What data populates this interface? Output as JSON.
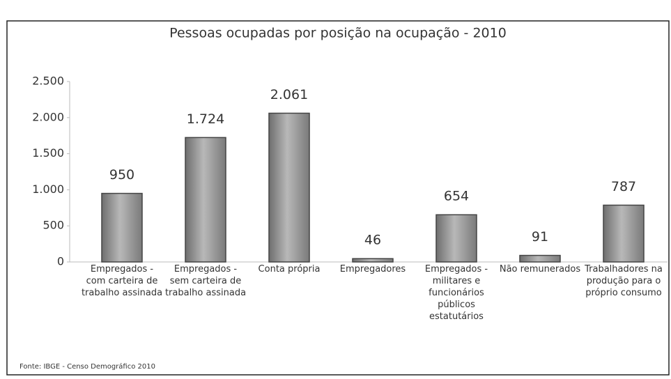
{
  "chart_data": {
    "type": "bar",
    "title": "Pessoas ocupadas por posição na ocupação - 2010",
    "categories": [
      "Empregados - com carteira de trabalho assinada",
      "Empregados - sem carteira de trabalho assinada",
      "Conta própria",
      "Empregadores",
      "Empregados - militares e funcionários públicos estatutários",
      "Não remunerados",
      "Trabalhadores na produção para o próprio consumo"
    ],
    "values": [
      950,
      1724,
      2061,
      46,
      654,
      91,
      787
    ],
    "value_labels": [
      "950",
      "1.724",
      "2.061",
      "46",
      "654",
      "91",
      "787"
    ],
    "color": "#9a9a9a",
    "ylim": [
      0,
      2500
    ],
    "yticks": [
      0,
      500,
      {
        "value": 1000,
        "label": "1.000"
      },
      {
        "value": 1500,
        "label": "1.500"
      },
      {
        "value": 2000,
        "label": "2.000"
      },
      {
        "value": 2500,
        "label": "2.500"
      }
    ],
    "grid": false,
    "source": "Fonte: IBGE - Censo Demográfico 2010"
  }
}
